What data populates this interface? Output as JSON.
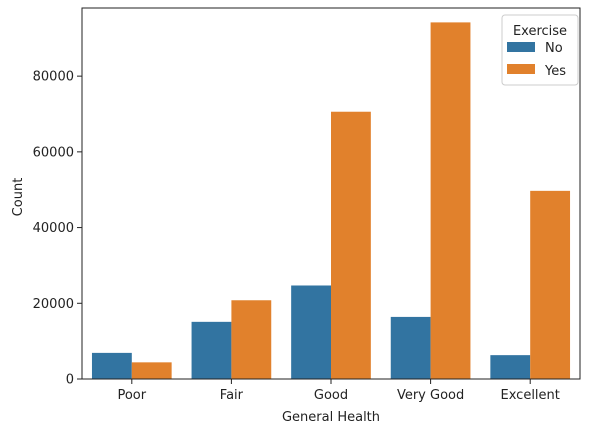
{
  "chart_data": {
    "type": "bar",
    "categories": [
      "Poor",
      "Fair",
      "Good",
      "Very Good",
      "Excellent"
    ],
    "series": [
      {
        "name": "No",
        "values": [
          6900,
          15100,
          24700,
          16400,
          6300
        ],
        "color": "#3274a1"
      },
      {
        "name": "Yes",
        "values": [
          4400,
          20800,
          70600,
          94200,
          49700
        ],
        "color": "#e1812c"
      }
    ],
    "xlabel": "General Health",
    "ylabel": "Count",
    "ylim": [
      0,
      98000
    ],
    "yticks": [
      0,
      20000,
      40000,
      60000,
      80000
    ],
    "ytick_labels": [
      "0",
      "20000",
      "40000",
      "60000",
      "80000"
    ],
    "grid": false,
    "legend": {
      "title": "Exercise",
      "placement": "top-right"
    }
  }
}
